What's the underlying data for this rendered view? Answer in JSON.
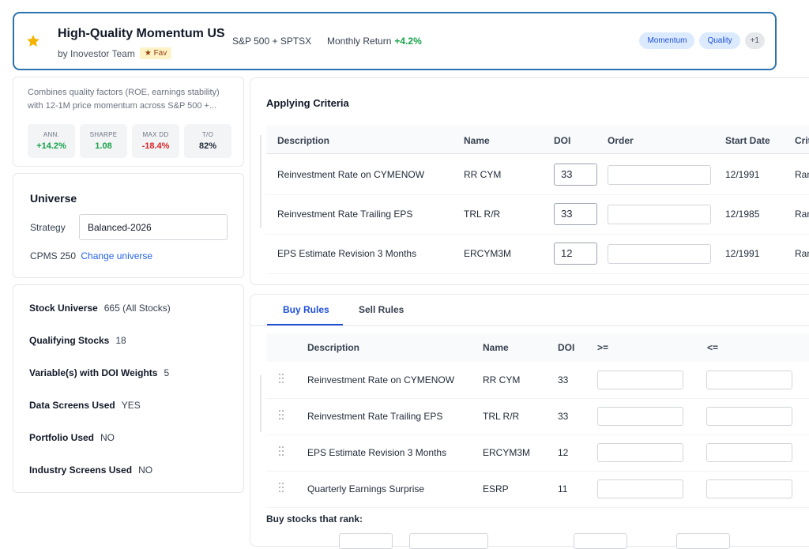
{
  "header": {
    "title": "High-Quality Momentum US",
    "byline": "by Inovestor Team",
    "fav_label": "★ Fav",
    "benchmark": "S&P 500 + SPTSX",
    "monthly_label": "Monthly Return",
    "monthly_value": "+4.2%",
    "tags": [
      "Momentum",
      "Quality"
    ],
    "tags_more": "+1",
    "colors": {
      "accent": "#2b73ad",
      "star": "#f5b400",
      "positive": "#16a34a",
      "negative": "#dc2626"
    }
  },
  "summary": {
    "description": "Combines quality factors (ROE, earnings stability) with 12-1M price momentum across S&P 500 +...",
    "stats": [
      {
        "label": "ANN.",
        "value": "+14.2%",
        "tone": "g"
      },
      {
        "label": "SHARPE",
        "value": "1.08",
        "tone": "g"
      },
      {
        "label": "MAX DD",
        "value": "-18.4%",
        "tone": "r"
      },
      {
        "label": "T/O",
        "value": "82%",
        "tone": "k"
      }
    ]
  },
  "universe": {
    "title": "Universe",
    "strategy_label": "Strategy",
    "strategy_value": "Balanced-2026",
    "cpms": "CPMS 250",
    "change_link": "Change universe"
  },
  "stock_info": [
    {
      "label": "Stock Universe",
      "value": "665 (All Stocks)"
    },
    {
      "label": "Qualifying Stocks",
      "value": "18"
    },
    {
      "label": "Variable(s) with DOI Weights",
      "value": "5"
    },
    {
      "label": "Data Screens Used",
      "value": "YES"
    },
    {
      "label": "Portfolio Used",
      "value": "NO"
    },
    {
      "label": "Industry Screens Used",
      "value": "NO"
    }
  ],
  "criteria": {
    "title": "Applying Criteria",
    "headers": {
      "description": "Description",
      "name": "Name",
      "doi": "DOI",
      "order": "Order",
      "start_date": "Start Date",
      "crit": "Crit"
    },
    "rows": [
      {
        "description": "Reinvestment Rate on CYMENOW",
        "name": "RR CYM",
        "doi": "33",
        "start_date": "12/1991",
        "crit": "Ran"
      },
      {
        "description": "Reinvestment Rate Trailing EPS",
        "name": "TRL R/R",
        "doi": "33",
        "start_date": "12/1985",
        "crit": "Ran"
      },
      {
        "description": "EPS Estimate Revision 3 Months",
        "name": "ERCYM3M",
        "doi": "12",
        "start_date": "12/1991",
        "crit": "Ran"
      }
    ]
  },
  "rules": {
    "tabs": [
      "Buy Rules",
      "Sell Rules"
    ],
    "headers": {
      "description": "Description",
      "name": "Name",
      "doi": "DOI",
      "gte": ">=",
      "lte": "<="
    },
    "rows": [
      {
        "description": "Reinvestment Rate on CYMENOW",
        "name": "RR CYM",
        "doi": "33"
      },
      {
        "description": "Reinvestment Rate Trailing EPS",
        "name": "TRL R/R",
        "doi": "33"
      },
      {
        "description": "EPS Estimate Revision 3 Months",
        "name": "ERCYM3M",
        "doi": "12"
      },
      {
        "description": "Quarterly Earnings Surprise",
        "name": "ESRP",
        "doi": "11"
      }
    ],
    "buy_rank_label": "Buy stocks that rank:"
  }
}
